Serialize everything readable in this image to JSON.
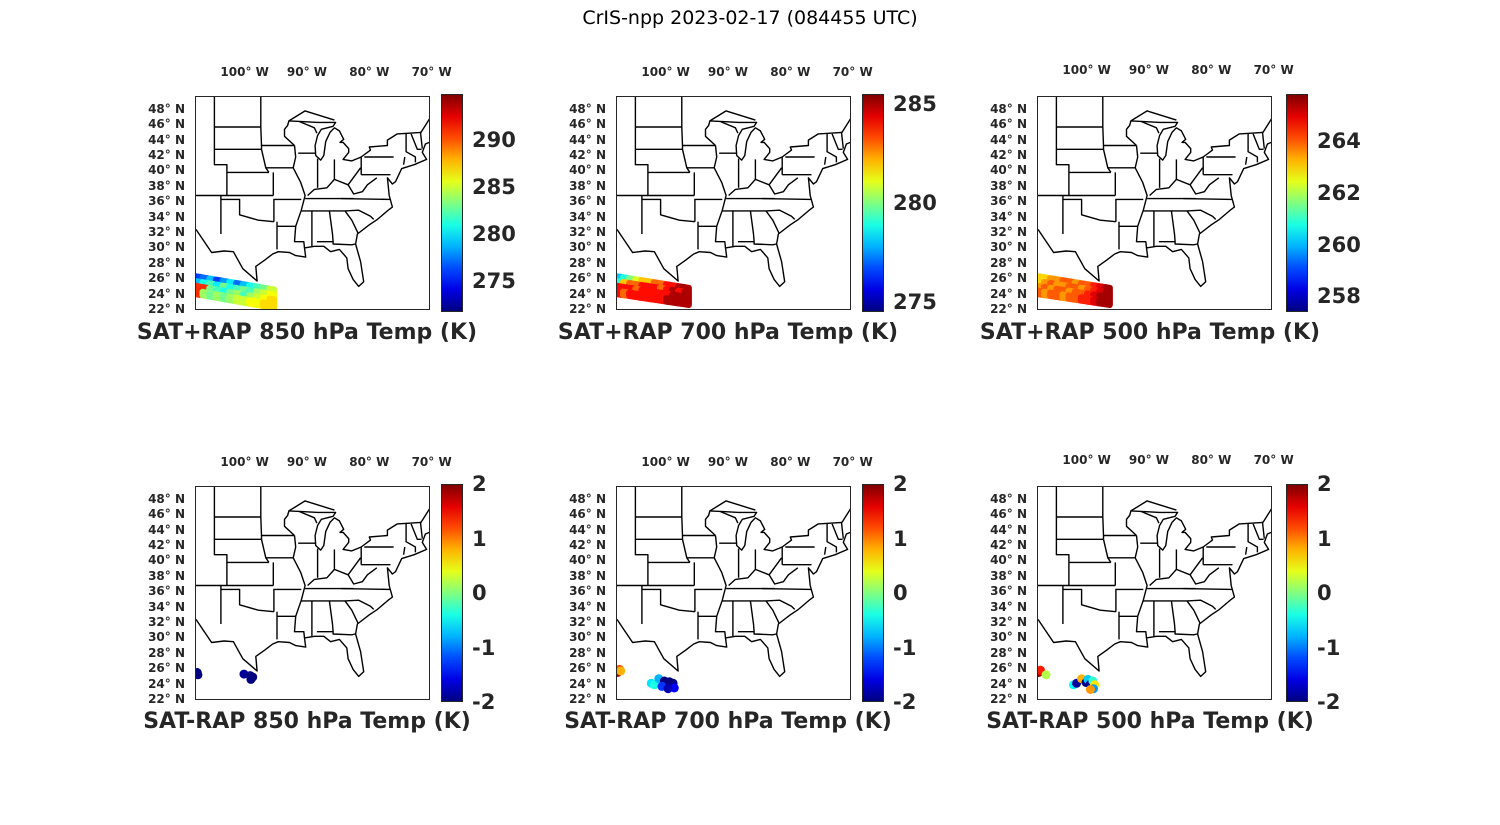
{
  "figure_title": "CrIS-npp 2023-02-17 (084455 UTC)",
  "lon_ticks": [
    -100,
    -90,
    -80,
    -70
  ],
  "lon_labels": [
    "100° W",
    "90° W",
    "80° W",
    "70° W"
  ],
  "lat_ticks": [
    22,
    24,
    26,
    28,
    30,
    32,
    34,
    36,
    38,
    40,
    42,
    44,
    46,
    48
  ],
  "lat_labels": [
    "22° N",
    "24° N",
    "26° N",
    "28° N",
    "30° N",
    "32° N",
    "34° N",
    "36° N",
    "38° N",
    "40° N",
    "42° N",
    "44° N",
    "46° N",
    "48° N"
  ],
  "map_extent": {
    "lon": [
      -107,
      -69.3
    ],
    "lat": [
      22,
      49.8
    ]
  },
  "colormap": "jet",
  "panels": [
    {
      "title": "SAT+RAP 850 hPa Temp (K)",
      "clim": [
        271.7,
        294.9
      ],
      "cbar_ticks": [
        275,
        280,
        285,
        290
      ],
      "cbar_labels": [
        "275",
        "280",
        "285",
        "290"
      ],
      "swath": {
        "lon": [
          -107,
          -94.5
        ],
        "lat_top": [
          26.5,
          24.8
        ],
        "lat_bottom": [
          24.2,
          22.4
        ],
        "values": [
          [
            276,
            277,
            279,
            276,
            278,
            280,
            277,
            279,
            281,
            282,
            283,
            285
          ],
          [
            279,
            281,
            282,
            280,
            283,
            281,
            282,
            283,
            282,
            284,
            285,
            286
          ],
          [
            291,
            291,
            283,
            282,
            281,
            283,
            284,
            282,
            284,
            285,
            286,
            287
          ],
          [
            291,
            284,
            283,
            284,
            283,
            284,
            285,
            285,
            286,
            286,
            287,
            287
          ]
        ]
      },
      "points": []
    },
    {
      "title": "SAT+RAP 700 hPa Temp (K)",
      "clim": [
        274.5,
        285.5
      ],
      "cbar_ticks": [
        275,
        280,
        285
      ],
      "cbar_labels": [
        "275",
        "280",
        "285"
      ],
      "swath": {
        "lon": [
          -107,
          -95.5
        ],
        "lat_top": [
          26.5,
          25.0
        ],
        "lat_bottom": [
          24.2,
          22.8
        ],
        "values": [
          [
            278,
            279,
            280,
            281,
            282,
            282,
            283,
            283,
            284,
            284,
            285,
            285
          ],
          [
            279,
            282,
            283,
            283,
            284,
            284,
            284,
            283,
            284,
            285,
            284,
            285
          ],
          [
            284,
            284,
            284,
            283,
            284,
            284,
            284,
            284,
            284,
            285,
            285,
            285
          ],
          [
            284,
            283,
            284,
            284,
            284,
            284,
            284,
            284,
            285,
            285,
            285,
            285
          ]
        ]
      },
      "points": []
    },
    {
      "title": "SAT+RAP 500 hPa Temp (K)",
      "clim": [
        257.4,
        265.8
      ],
      "cbar_ticks": [
        258,
        260,
        262,
        264
      ],
      "cbar_labels": [
        "258",
        "260",
        "262",
        "264"
      ],
      "swath": {
        "lon": [
          -107,
          -95.5
        ],
        "lat_top": [
          26.5,
          25.0
        ],
        "lat_bottom": [
          24.2,
          22.8
        ],
        "values": [
          [
            263,
            263,
            263.5,
            263.5,
            264,
            264,
            263.5,
            264,
            264,
            264.5,
            265,
            265.5
          ],
          [
            263,
            263.5,
            264,
            263.5,
            263.5,
            264,
            264,
            263.5,
            264,
            264.5,
            265,
            265.5
          ],
          [
            263.5,
            264,
            263.5,
            264,
            264,
            263.5,
            264,
            264,
            264.5,
            265,
            265.5,
            265.5
          ],
          [
            264,
            263.5,
            264,
            264,
            263.5,
            264,
            264,
            264.5,
            264.5,
            265,
            265.5,
            265.5
          ]
        ]
      },
      "points": []
    },
    {
      "title": "SAT-RAP 850 hPa Temp (K)",
      "clim": [
        -2,
        2
      ],
      "cbar_ticks": [
        -2,
        -1,
        0,
        1,
        2
      ],
      "cbar_labels": [
        "-2",
        "-1",
        "0",
        "1",
        "2"
      ],
      "points": [
        {
          "lon": -106.8,
          "lat": 25.7,
          "v": -2
        },
        {
          "lon": -106.7,
          "lat": 25.4,
          "v": -2
        },
        {
          "lon": -99.3,
          "lat": 25.5,
          "v": -1.9
        },
        {
          "lon": -98.3,
          "lat": 25.3,
          "v": -2
        },
        {
          "lon": -98.2,
          "lat": 24.8,
          "v": -2
        },
        {
          "lon": -97.9,
          "lat": 25.1,
          "v": -2
        }
      ]
    },
    {
      "title": "SAT-RAP 700 hPa Temp (K)",
      "clim": [
        -2,
        2
      ],
      "cbar_ticks": [
        -2,
        -1,
        0,
        1,
        2
      ],
      "cbar_labels": [
        "-2",
        "-1",
        "0",
        "1",
        "2"
      ],
      "points": [
        {
          "lon": -106.9,
          "lat": 25.7,
          "v": 1.8
        },
        {
          "lon": -106.6,
          "lat": 26.1,
          "v": 1.2
        },
        {
          "lon": -106.4,
          "lat": 25.9,
          "v": 0.8
        },
        {
          "lon": -101.5,
          "lat": 24.3,
          "v": -0.6
        },
        {
          "lon": -101.0,
          "lat": 24.1,
          "v": -0.4
        },
        {
          "lon": -100.3,
          "lat": 24.9,
          "v": -0.8
        },
        {
          "lon": -99.4,
          "lat": 24.6,
          "v": -2
        },
        {
          "lon": -99.0,
          "lat": 24.2,
          "v": -1.9
        },
        {
          "lon": -98.6,
          "lat": 24.5,
          "v": -2
        },
        {
          "lon": -98.3,
          "lat": 23.9,
          "v": -1.7
        },
        {
          "lon": -98.0,
          "lat": 24.3,
          "v": -2
        },
        {
          "lon": -97.8,
          "lat": 23.7,
          "v": -1.5
        },
        {
          "lon": -99.8,
          "lat": 23.9,
          "v": -1.3
        },
        {
          "lon": -98.8,
          "lat": 23.6,
          "v": -1.8
        }
      ]
    },
    {
      "title": "SAT-RAP 500 hPa Temp (K)",
      "clim": [
        -2,
        2
      ],
      "cbar_ticks": [
        -2,
        -1,
        0,
        1,
        2
      ],
      "cbar_labels": [
        "-2",
        "-1",
        "0",
        "1",
        "2"
      ],
      "points": [
        {
          "lon": -106.9,
          "lat": 25.7,
          "v": 1.9
        },
        {
          "lon": -106.6,
          "lat": 26.0,
          "v": 1.4
        },
        {
          "lon": -105.7,
          "lat": 25.4,
          "v": 0.2
        },
        {
          "lon": -101.3,
          "lat": 24.1,
          "v": -0.5
        },
        {
          "lon": -100.8,
          "lat": 24.3,
          "v": -1.9
        },
        {
          "lon": -100.0,
          "lat": 24.9,
          "v": 0.8
        },
        {
          "lon": -99.3,
          "lat": 24.4,
          "v": -2
        },
        {
          "lon": -99.0,
          "lat": 24.8,
          "v": -0.7
        },
        {
          "lon": -98.6,
          "lat": 24.2,
          "v": -1.9
        },
        {
          "lon": -98.2,
          "lat": 24.6,
          "v": -0.3
        },
        {
          "lon": -97.9,
          "lat": 24.1,
          "v": 0.6
        },
        {
          "lon": -98.1,
          "lat": 23.6,
          "v": -0.9
        },
        {
          "lon": -98.6,
          "lat": 23.5,
          "v": 0.9
        }
      ]
    }
  ]
}
